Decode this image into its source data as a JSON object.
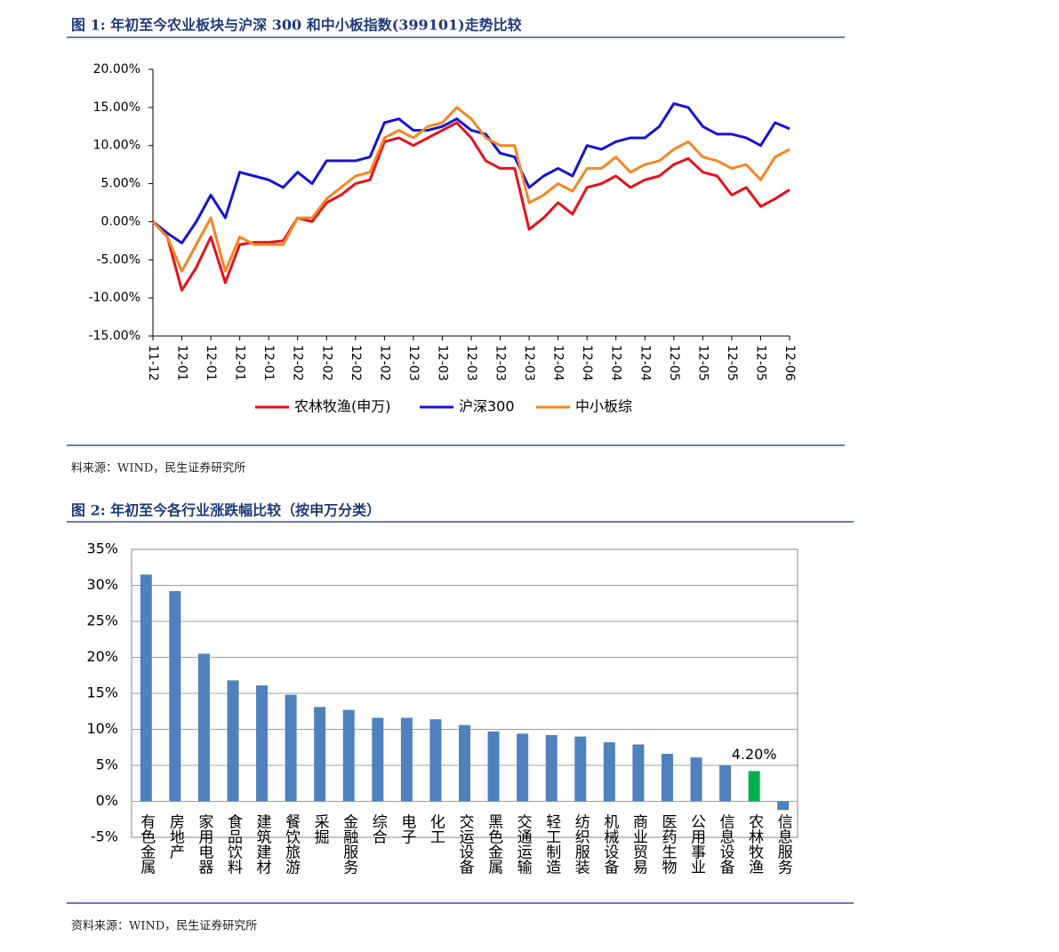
{
  "chart_data": [
    {
      "type": "line",
      "title": "图 1:  年初至今农业板块与沪深 300 和中小板指数(399101)走势比较",
      "source": "料来源：WIND，民生证券研究所",
      "categories": [
        "11-12",
        null,
        "12-01",
        null,
        "12-01",
        null,
        "12-01",
        null,
        "12-01",
        null,
        "12-02",
        null,
        "12-02",
        null,
        "12-02",
        null,
        "12-02",
        null,
        "12-03",
        null,
        "12-03",
        null,
        "12-03",
        null,
        "12-03",
        null,
        "12-03",
        null,
        "12-04",
        null,
        "12-04",
        null,
        "12-04",
        null,
        "12-04",
        null,
        "12-05",
        null,
        "12-05",
        null,
        "12-05",
        null,
        "12-05",
        null,
        "12-06"
      ],
      "series": [
        {
          "name": "农林牧渔(申万)",
          "color": "#e8101a",
          "values": [
            0,
            -2,
            -9,
            -6,
            -2,
            -8,
            -3,
            -2.7,
            -2.7,
            -2.5,
            0.5,
            0,
            2.5,
            3.5,
            5,
            5.5,
            10.5,
            11,
            10,
            11,
            12,
            13,
            11,
            8,
            7,
            7,
            -1,
            0.5,
            2.5,
            1,
            4.5,
            5,
            6,
            4.5,
            5.5,
            6,
            7.5,
            8.3,
            6.5,
            6,
            3.5,
            4.5,
            2,
            3,
            4.2
          ]
        },
        {
          "name": "沪深300",
          "color": "#1414d4",
          "values": [
            0,
            -1.5,
            -2.8,
            0,
            3.5,
            0.5,
            6.5,
            6,
            5.5,
            4.5,
            6.5,
            5,
            8,
            8,
            8,
            8.5,
            13,
            13.5,
            12,
            12,
            12.5,
            13.5,
            12,
            11.5,
            9,
            8.5,
            4.5,
            6,
            7,
            6,
            10,
            9.5,
            10.5,
            11,
            11,
            12.5,
            15.5,
            15,
            12.5,
            11.5,
            11.5,
            11,
            10,
            13,
            12.2
          ]
        },
        {
          "name": "中小板综",
          "color": "#f5861f",
          "values": [
            0,
            -2,
            -6.5,
            -3,
            0.5,
            -6.5,
            -2,
            -3,
            -3,
            -3,
            0.5,
            0.5,
            3,
            4.5,
            6,
            6.5,
            11,
            12,
            11,
            12.5,
            13,
            15,
            13.5,
            11,
            10,
            10,
            2.5,
            3.5,
            5,
            4,
            7,
            7,
            8.5,
            6.5,
            7.5,
            8,
            9.5,
            10.5,
            8.5,
            8,
            7,
            7.5,
            5.5,
            8.5,
            9.5
          ]
        }
      ],
      "ylim": [
        -15,
        20
      ],
      "yticks": [
        {
          "value": -15,
          "label": "-15.00%"
        },
        {
          "value": -10,
          "label": "-10.00%"
        },
        {
          "value": -5,
          "label": "-5.00%"
        },
        {
          "value": 0,
          "label": "0.00%"
        },
        {
          "value": 5,
          "label": "5.00%"
        },
        {
          "value": 10,
          "label": "10.00%"
        },
        {
          "value": 15,
          "label": "15.00%"
        },
        {
          "value": 20,
          "label": "20.00%"
        }
      ],
      "grid": false,
      "legend": "bottom"
    },
    {
      "type": "bar",
      "title": "图 2:  年初至今各行业涨跌幅比较（按申万分类）",
      "source": "资料来源：WIND，民生证券研究所",
      "categories": [
        "有色金属",
        "房地产",
        "家用电器",
        "食品饮料",
        "建筑建材",
        "餐饮旅游",
        "采掘",
        "金融服务",
        "综合",
        "电子",
        "化工",
        "交运设备",
        "黑色金属",
        "交通运输",
        "轻工制造",
        "纺织服装",
        "机械设备",
        "商业贸易",
        "医药生物",
        "公用事业",
        "信息设备",
        "农林牧渔",
        "信息服务"
      ],
      "values": [
        31.5,
        29.2,
        20.5,
        16.8,
        16.1,
        14.8,
        13.1,
        12.7,
        11.6,
        11.6,
        11.4,
        10.6,
        9.7,
        9.4,
        9.2,
        9.0,
        8.2,
        7.9,
        6.6,
        6.1,
        5.0,
        4.2,
        -1.2
      ],
      "value_labels": [
        null,
        null,
        null,
        null,
        null,
        null,
        null,
        null,
        null,
        null,
        null,
        null,
        null,
        null,
        null,
        null,
        null,
        null,
        null,
        null,
        null,
        "4.20%",
        null
      ],
      "colors": [
        "#4f81bd",
        "#4f81bd",
        "#4f81bd",
        "#4f81bd",
        "#4f81bd",
        "#4f81bd",
        "#4f81bd",
        "#4f81bd",
        "#4f81bd",
        "#4f81bd",
        "#4f81bd",
        "#4f81bd",
        "#4f81bd",
        "#4f81bd",
        "#4f81bd",
        "#4f81bd",
        "#4f81bd",
        "#4f81bd",
        "#4f81bd",
        "#4f81bd",
        "#4f81bd",
        "#00b050",
        "#4f81bd"
      ],
      "ylim": [
        -5,
        35
      ],
      "yticks": [
        {
          "value": -5,
          "label": "-5%"
        },
        {
          "value": 0,
          "label": "0%"
        },
        {
          "value": 5,
          "label": "5%"
        },
        {
          "value": 10,
          "label": "10%"
        },
        {
          "value": 15,
          "label": "15%"
        },
        {
          "value": 20,
          "label": "20%"
        },
        {
          "value": 25,
          "label": "25%"
        },
        {
          "value": 30,
          "label": "30%"
        },
        {
          "value": 35,
          "label": "35%"
        }
      ],
      "grid": true
    }
  ]
}
